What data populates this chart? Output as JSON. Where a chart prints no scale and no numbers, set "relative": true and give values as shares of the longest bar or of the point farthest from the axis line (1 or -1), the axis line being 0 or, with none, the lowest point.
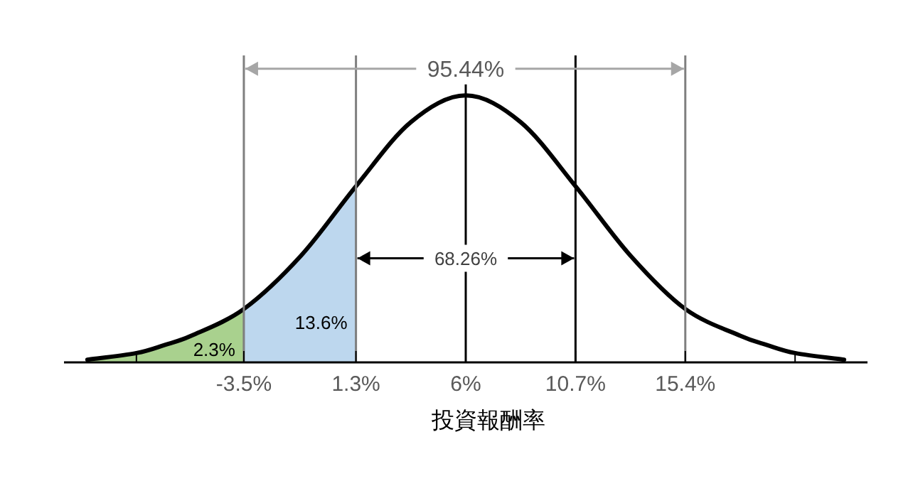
{
  "chart_data": {
    "type": "line",
    "relative": true,
    "xlabel": "投資報酬率",
    "xlim": [
      -11.2,
      23.2
    ],
    "xticks": [
      {
        "value": -8.1,
        "label": null
      },
      {
        "value": -3.5,
        "label": "-3.5%"
      },
      {
        "value": 1.3,
        "label": "1.3%"
      },
      {
        "value": 6,
        "label": "6%"
      },
      {
        "value": 10.7,
        "label": "10.7%"
      },
      {
        "value": 15.4,
        "label": "15.4%"
      },
      {
        "value": 20.1,
        "label": null
      }
    ],
    "series": [
      {
        "type": "area",
        "color": "#a9d18e",
        "x": [
          -10.2,
          -8.1,
          -6.9,
          -5.75,
          -3.5
        ],
        "values": [
          0.01,
          0.035,
          0.065,
          0.1,
          0.2
        ]
      },
      {
        "type": "area",
        "color": "#bdd7ee",
        "x": [
          -3.5,
          -1.05,
          1.3
        ],
        "values": [
          0.2,
          0.4,
          0.66
        ]
      },
      {
        "type": "line",
        "color": "#000000",
        "x": [
          -10.2,
          -8.1,
          -6.9,
          -5.75,
          -3.5,
          -1.05,
          1.3,
          3.65,
          6,
          8.35,
          10.7,
          13.05,
          15.4,
          17.75,
          18.9,
          20.1,
          22.2
        ],
        "values": [
          0.01,
          0.035,
          0.065,
          0.1,
          0.2,
          0.4,
          0.66,
          0.9,
          1,
          0.9,
          0.66,
          0.4,
          0.2,
          0.1,
          0.065,
          0.035,
          0.01
        ]
      }
    ],
    "ref_lines": [
      {
        "axis": "x",
        "value": -3.5,
        "color": "#7f7f7f"
      },
      {
        "axis": "x",
        "value": 1.3,
        "color": "#7f7f7f"
      },
      {
        "axis": "x",
        "value": 6,
        "color": "#000000"
      },
      {
        "axis": "x",
        "value": 10.7,
        "color": "#000000"
      },
      {
        "axis": "x",
        "value": 15.4,
        "color": "#7f7f7f"
      }
    ],
    "annotations": [
      {
        "text": "95.44%",
        "x": 6,
        "y": 1.1
      },
      {
        "text": "68.26%",
        "x": 6,
        "y": 0.39
      },
      "2.3%",
      "13.6%"
    ],
    "grid": false
  }
}
